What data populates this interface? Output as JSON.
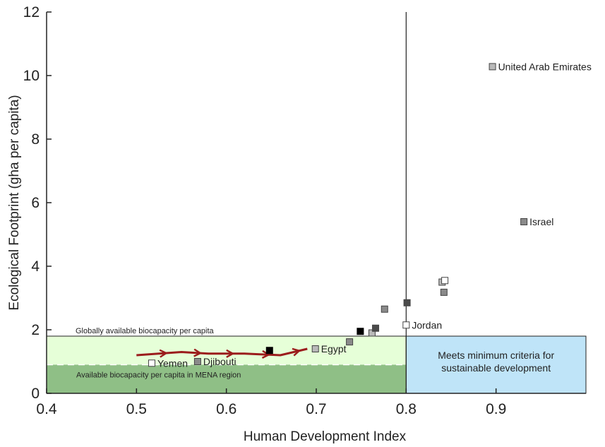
{
  "chart_data": {
    "type": "scatter",
    "xlabel": "Human Development Index",
    "ylabel": "Ecological Footprint (gha per capita)",
    "xlim": [
      0.4,
      1.0
    ],
    "ylim": [
      0,
      12
    ],
    "x_ticks": [
      "0.4",
      "0.5",
      "0.6",
      "0.7",
      "0.8",
      "0.9"
    ],
    "y_ticks": [
      "0",
      "2",
      "4",
      "6",
      "8",
      "10",
      "12"
    ],
    "regions": {
      "global_biocapacity": 1.8,
      "mena_biocapacity": 0.9,
      "sustainability_hdi_threshold": 0.8,
      "global_label": "Globally available biocapacity per capita",
      "mena_label": "Available biocapacity per capita in MENA region",
      "box_label_line1": "Meets minimum criteria for",
      "box_label_line2": "sustainable development"
    },
    "trajectory": [
      {
        "x": 0.5,
        "y": 1.2
      },
      {
        "x": 0.55,
        "y": 1.3
      },
      {
        "x": 0.58,
        "y": 1.25
      },
      {
        "x": 0.62,
        "y": 1.25
      },
      {
        "x": 0.66,
        "y": 1.2
      },
      {
        "x": 0.69,
        "y": 1.4
      }
    ],
    "points": [
      {
        "x": 0.517,
        "y": 0.95,
        "shade": "white",
        "label": "Yemen"
      },
      {
        "x": 0.568,
        "y": 1.0,
        "shade": "mid",
        "label": "Djibouti"
      },
      {
        "x": 0.648,
        "y": 1.35,
        "shade": "black",
        "label": ""
      },
      {
        "x": 0.699,
        "y": 1.4,
        "shade": "light",
        "label": "Egypt"
      },
      {
        "x": 0.737,
        "y": 1.62,
        "shade": "mid",
        "label": ""
      },
      {
        "x": 0.749,
        "y": 1.95,
        "shade": "black",
        "label": ""
      },
      {
        "x": 0.762,
        "y": 1.9,
        "shade": "light",
        "label": ""
      },
      {
        "x": 0.766,
        "y": 2.05,
        "shade": "dark",
        "label": ""
      },
      {
        "x": 0.776,
        "y": 2.65,
        "shade": "mid",
        "label": ""
      },
      {
        "x": 0.8,
        "y": 2.15,
        "shade": "white",
        "label": "Jordan"
      },
      {
        "x": 0.801,
        "y": 2.85,
        "shade": "dark",
        "label": ""
      },
      {
        "x": 0.84,
        "y": 3.5,
        "shade": "light",
        "label": ""
      },
      {
        "x": 0.843,
        "y": 3.55,
        "shade": "white",
        "label": ""
      },
      {
        "x": 0.842,
        "y": 3.18,
        "shade": "mid",
        "label": ""
      },
      {
        "x": 0.896,
        "y": 10.28,
        "shade": "light",
        "label": "United Arab Emirates"
      },
      {
        "x": 0.931,
        "y": 5.4,
        "shade": "mid",
        "label": "Israel"
      }
    ],
    "colors": {
      "global_fill": "#e6ffd8",
      "mena_fill": "#8fbf86",
      "sustain_fill": "#bfe4f8",
      "trajectory": "#9b1c1c",
      "white": "#ffffff",
      "light": "#b9b9b9",
      "mid": "#8a8a8a",
      "dark": "#4a4a4a",
      "black": "#000000"
    }
  }
}
